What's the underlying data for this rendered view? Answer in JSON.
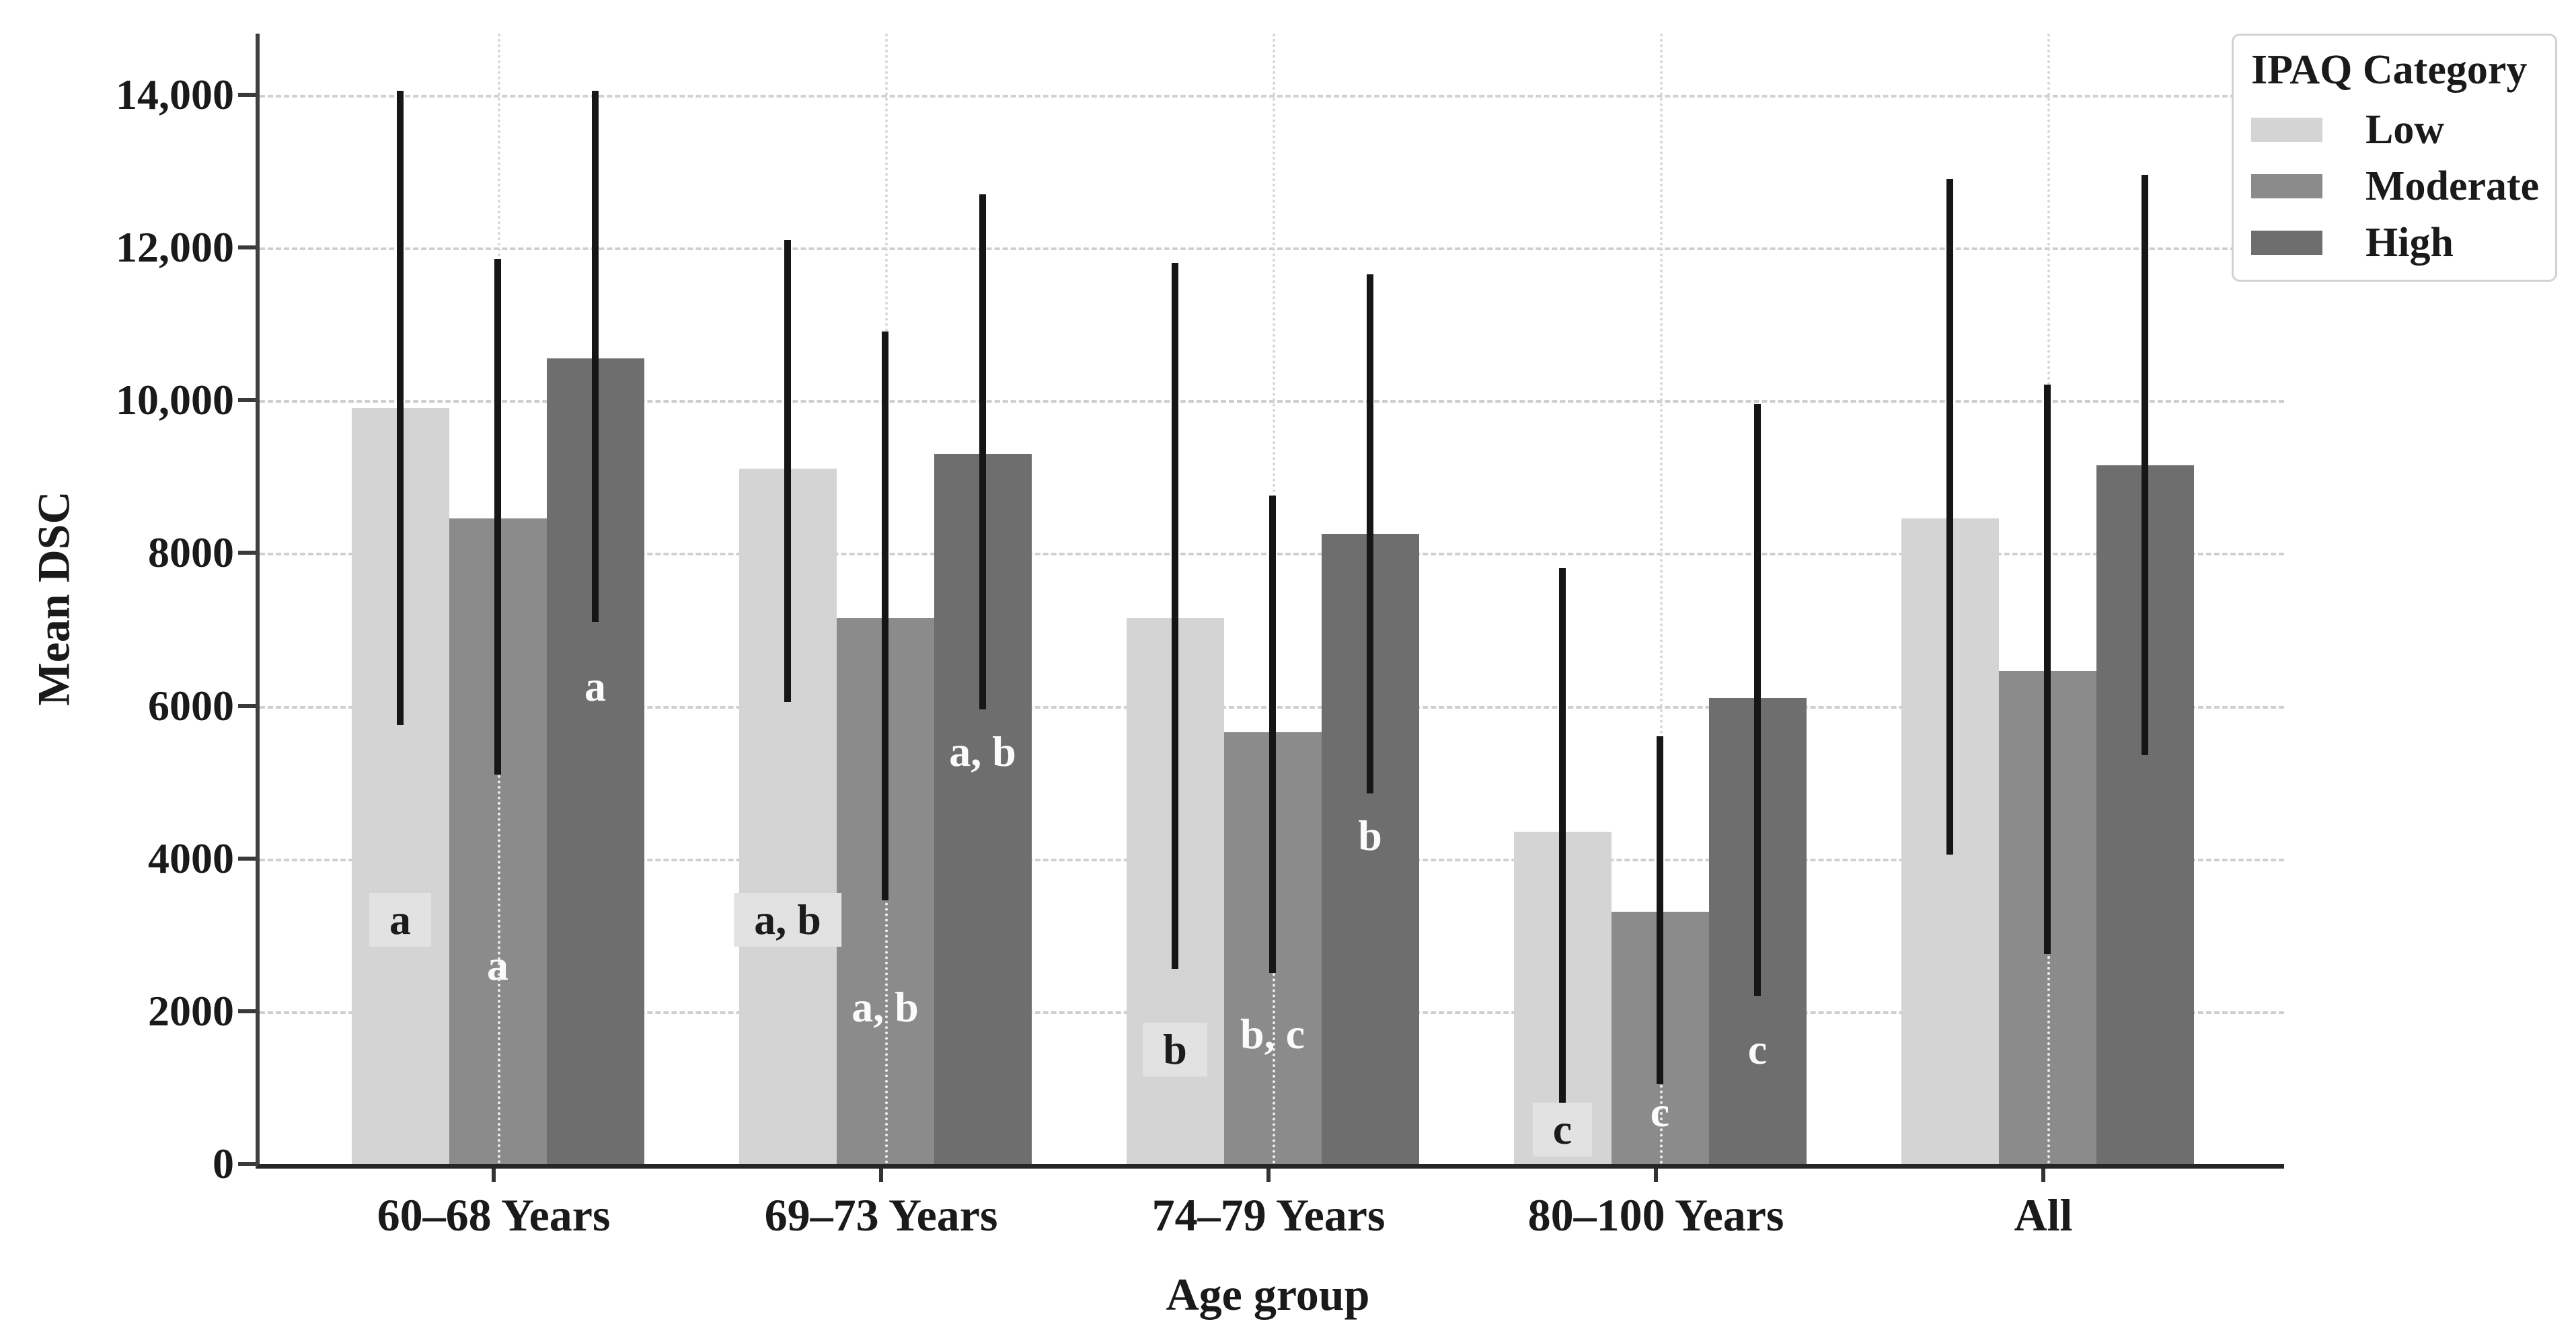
{
  "chart_data": {
    "type": "bar",
    "title": "",
    "xlabel": "Age group",
    "ylabel": "Mean DSC",
    "ylim": [
      0,
      14800
    ],
    "grid": "horizontal dashed gridlines; vertical dotted gridline at each group center; legend top-right",
    "legend_position": "top-right",
    "yticks": [
      {
        "value": 0,
        "label": "0"
      },
      {
        "value": 2000,
        "label": "2000"
      },
      {
        "value": 4000,
        "label": "4000"
      },
      {
        "value": 6000,
        "label": "6000"
      },
      {
        "value": 8000,
        "label": "8000"
      },
      {
        "value": 10000,
        "label": "10,000"
      },
      {
        "value": 12000,
        "label": "12,000"
      },
      {
        "value": 14000,
        "label": "14,000"
      }
    ],
    "categories": [
      "60–68 Years",
      "69–73 Years",
      "74–79 Years",
      "80–100 Years",
      "All"
    ],
    "series": [
      {
        "name": "Low",
        "color": "#d4d4d4",
        "values": [
          9900,
          9100,
          7150,
          4350,
          8450
        ],
        "error_low": [
          5750,
          6050,
          2550,
          800,
          4050
        ],
        "error_high": [
          14050,
          12100,
          11800,
          7800,
          12900
        ],
        "sig_labels": [
          "a",
          "a, b",
          "b",
          "c",
          ""
        ],
        "sig_label_y": [
          3200,
          3200,
          1500,
          450,
          null
        ],
        "label_style": "dark-on-light"
      },
      {
        "name": "Moderate",
        "color": "#8b8b8b",
        "values": [
          8450,
          7150,
          5650,
          3300,
          6450
        ],
        "error_low": [
          5100,
          3450,
          2500,
          1050,
          2750
        ],
        "error_high": [
          11850,
          10900,
          8750,
          5600,
          10200
        ],
        "sig_labels": [
          "a",
          "a, b",
          "b, c",
          "c",
          ""
        ],
        "sig_label_y": [
          2600,
          2050,
          1700,
          680,
          null
        ],
        "label_style": "white"
      },
      {
        "name": "High",
        "color": "#6e6e6e",
        "values": [
          10550,
          9300,
          8250,
          6100,
          9150
        ],
        "error_low": [
          7100,
          5950,
          4850,
          2200,
          5350
        ],
        "error_high": [
          14050,
          12700,
          11650,
          9950,
          12950
        ],
        "sig_labels": [
          "a",
          "a, b",
          "b",
          "c",
          ""
        ],
        "sig_label_y": [
          6250,
          5400,
          4300,
          1500,
          null
        ],
        "label_style": "white"
      }
    ]
  },
  "legend": {
    "title": "IPAQ Category",
    "items": [
      {
        "label": "Low",
        "color": "#d4d4d4"
      },
      {
        "label": "Moderate",
        "color": "#8b8b8b"
      },
      {
        "label": "High",
        "color": "#6e6e6e"
      }
    ]
  },
  "colors": {
    "background": "#ffffff",
    "error_bar": "#161616",
    "gridline": "#cfcfcf",
    "axis": "#3a3a3a",
    "sig_label_patch": "#e2e2e2",
    "sig_label_dark_text": "#1c1c1c",
    "sig_label_light_text": "#fbfbfb"
  }
}
